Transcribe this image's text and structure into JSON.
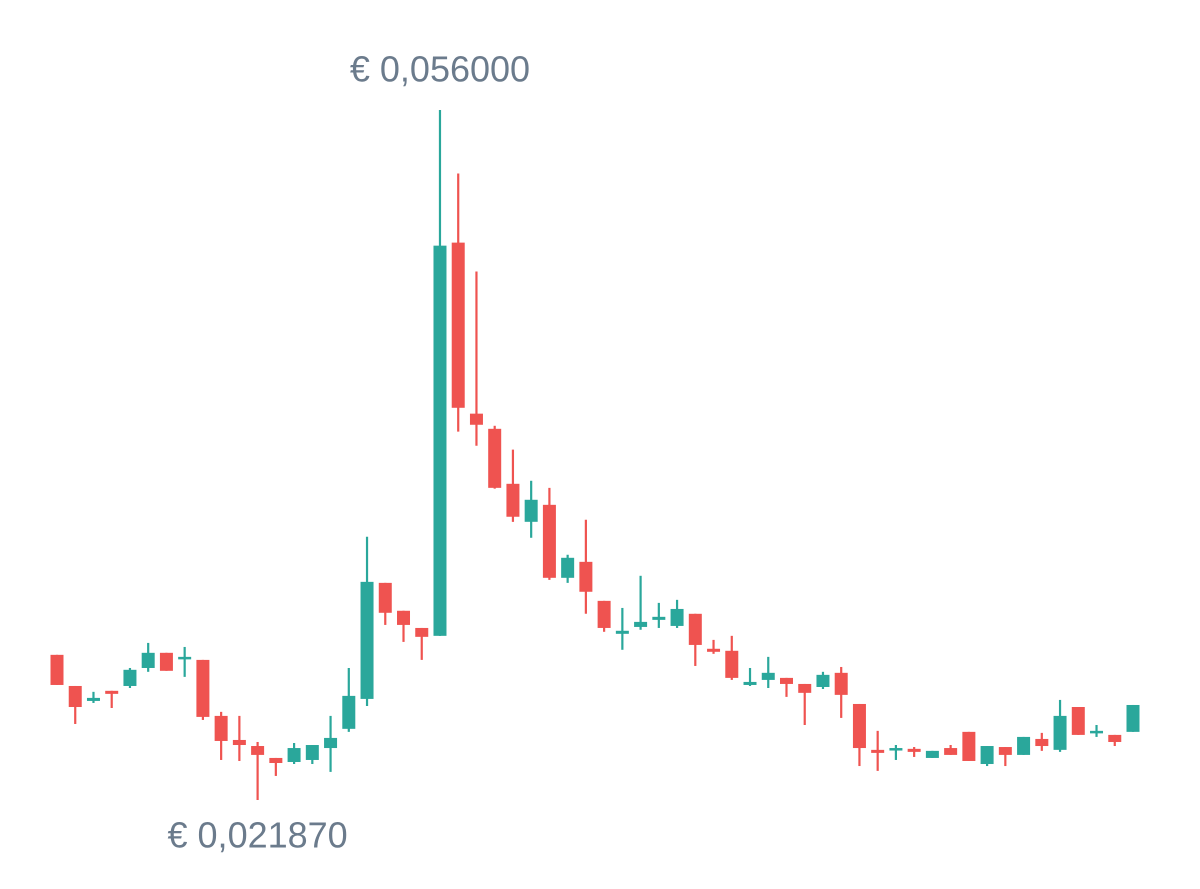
{
  "chart_data": {
    "type": "candlestick",
    "up_color": "#2aa79b",
    "down_color": "#ef5350",
    "open": [
      0.02905,
      0.02751,
      0.02677,
      0.02727,
      0.02751,
      0.0284,
      0.02915,
      0.02885,
      0.0288,
      0.02603,
      0.02484,
      0.02454,
      0.02395,
      0.02375,
      0.02385,
      0.02444,
      0.02539,
      0.02687,
      0.03261,
      0.03123,
      0.03038,
      0.02999,
      0.04944,
      0.04098,
      0.04023,
      0.03751,
      0.03563,
      0.03647,
      0.03286,
      0.03365,
      0.03172,
      0.03009,
      0.03043,
      0.03078,
      0.03048,
      0.03108,
      0.02935,
      0.02925,
      0.02756,
      0.02781,
      0.02791,
      0.02761,
      0.02746,
      0.02816,
      0.02662,
      0.02435,
      0.02435,
      0.0244,
      0.02395,
      0.02444,
      0.02524,
      0.02365,
      0.02449,
      0.0241,
      0.02489,
      0.02435,
      0.02647,
      0.02519,
      0.02509,
      0.02524
    ],
    "high": [
      0.02905,
      0.02751,
      0.02722,
      0.02727,
      0.0284,
      0.02964,
      0.02915,
      0.02944,
      0.0288,
      0.02623,
      0.02603,
      0.02474,
      0.02395,
      0.02469,
      0.02459,
      0.02603,
      0.0284,
      0.03489,
      0.03261,
      0.03123,
      0.03038,
      0.056,
      0.05286,
      0.04801,
      0.04038,
      0.0392,
      0.03766,
      0.03731,
      0.034,
      0.03573,
      0.03172,
      0.03137,
      0.03296,
      0.03162,
      0.03177,
      0.03108,
      0.02979,
      0.02999,
      0.0284,
      0.02895,
      0.02791,
      0.02761,
      0.02821,
      0.02845,
      0.02662,
      0.02529,
      0.02459,
      0.02449,
      0.0243,
      0.02459,
      0.02524,
      0.02454,
      0.02449,
      0.02499,
      0.02519,
      0.02682,
      0.02647,
      0.02558,
      0.02509,
      0.02657
    ],
    "low": [
      0.02756,
      0.02563,
      0.02667,
      0.02642,
      0.02741,
      0.02821,
      0.02826,
      0.02796,
      0.02583,
      0.02385,
      0.0238,
      0.02187,
      0.02306,
      0.02365,
      0.02365,
      0.02326,
      0.02524,
      0.02652,
      0.03053,
      0.02969,
      0.0288,
      0.02999,
      0.04009,
      0.03939,
      0.03727,
      0.03563,
      0.03484,
      0.03276,
      0.03261,
      0.03108,
      0.03019,
      0.0293,
      0.03029,
      0.03038,
      0.03038,
      0.0285,
      0.0291,
      0.02781,
      0.02751,
      0.02741,
      0.02697,
      0.02558,
      0.02736,
      0.02593,
      0.02355,
      0.02331,
      0.02385,
      0.024,
      0.02395,
      0.0241,
      0.0238,
      0.02355,
      0.02355,
      0.0241,
      0.0243,
      0.02425,
      0.02509,
      0.02499,
      0.02454,
      0.02524
    ],
    "close": [
      0.02756,
      0.02647,
      0.02692,
      0.02712,
      0.02831,
      0.02915,
      0.02826,
      0.02895,
      0.02598,
      0.02479,
      0.02459,
      0.0241,
      0.0237,
      0.02444,
      0.02459,
      0.02494,
      0.02702,
      0.03266,
      0.03113,
      0.03053,
      0.02994,
      0.04929,
      0.04127,
      0.04043,
      0.03731,
      0.03588,
      0.03672,
      0.03286,
      0.03385,
      0.03217,
      0.03038,
      0.03024,
      0.03068,
      0.03093,
      0.03132,
      0.02954,
      0.0292,
      0.02791,
      0.02771,
      0.02816,
      0.02761,
      0.02717,
      0.02806,
      0.02707,
      0.02444,
      0.0242,
      0.02444,
      0.02425,
      0.0243,
      0.0241,
      0.0238,
      0.02454,
      0.0241,
      0.02499,
      0.02454,
      0.02603,
      0.02509,
      0.02529,
      0.02474,
      0.02657
    ],
    "annotations": [
      {
        "value": 0.056,
        "label": "€ 0,056000"
      },
      {
        "value": 0.02187,
        "label": "€ 0,021870"
      }
    ]
  }
}
